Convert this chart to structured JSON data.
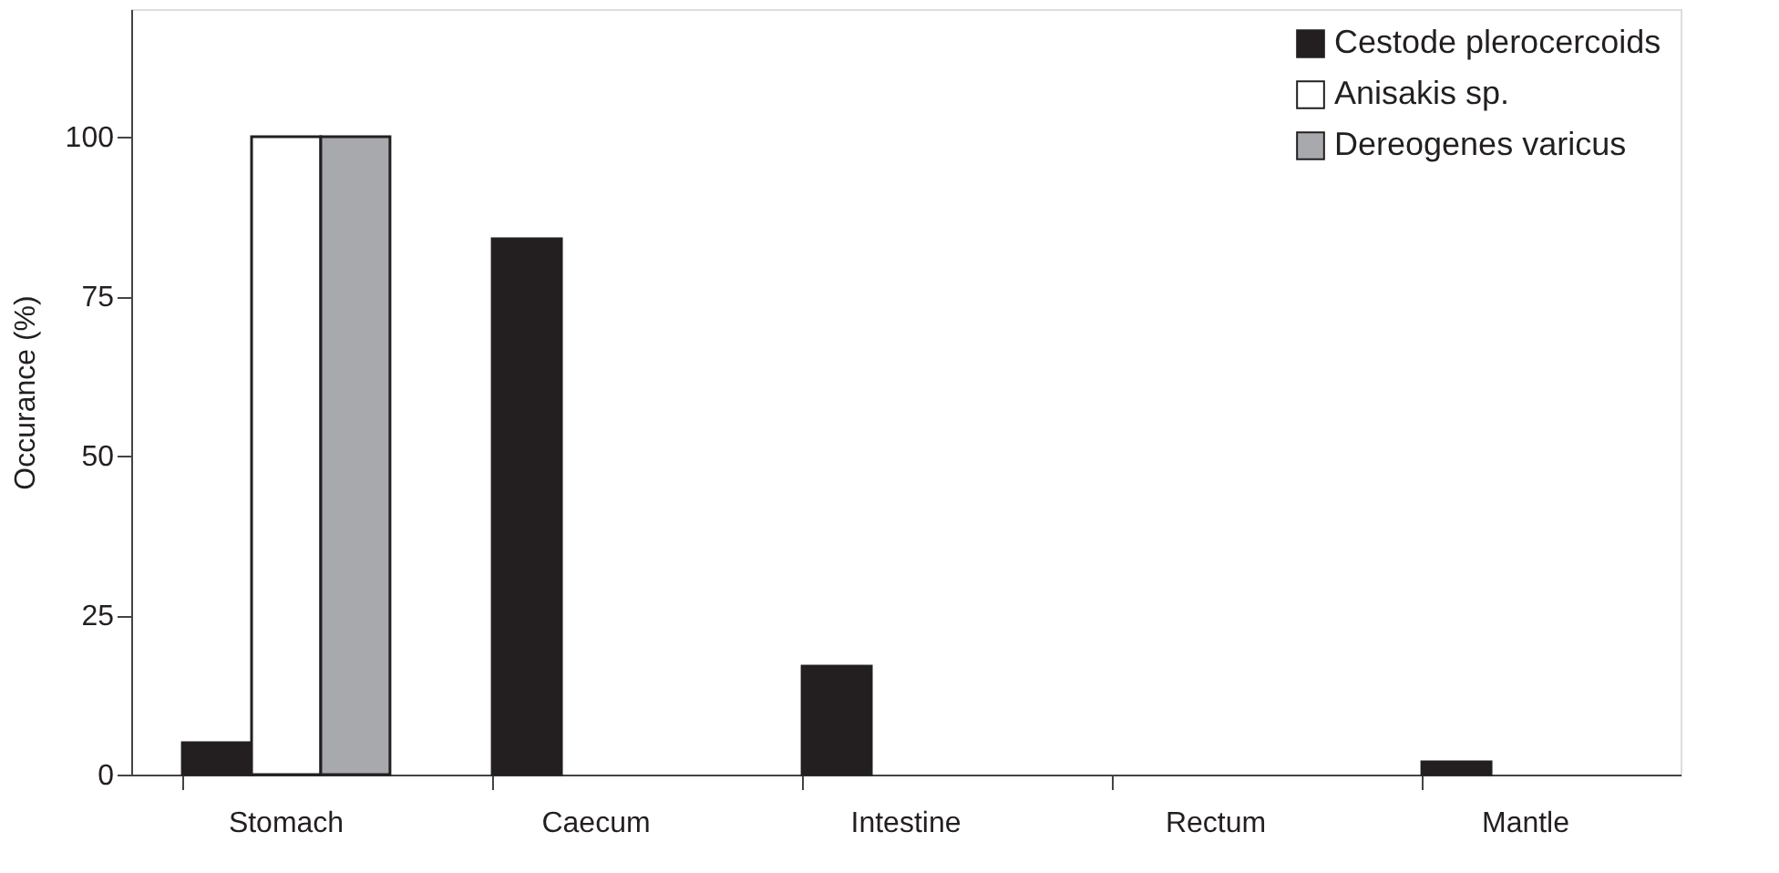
{
  "chart_data": {
    "type": "bar",
    "ylabel": "Occurance  (%)",
    "categories": [
      "Stomach",
      "Caecum",
      "Intestine",
      "Rectum",
      "Mantle"
    ],
    "series": [
      {
        "name": "Cestode plerocercoids",
        "color": "#231f20",
        "values": [
          5,
          84,
          17,
          null,
          2
        ]
      },
      {
        "name": "Anisakis sp.",
        "color": "#ffffff",
        "values": [
          100,
          null,
          null,
          null,
          null
        ]
      },
      {
        "name": "Dereogenes varicus",
        "color": "#a7a9ac",
        "values": [
          100,
          null,
          null,
          null,
          null
        ]
      }
    ],
    "ylim": [
      0,
      120
    ],
    "yticks": [
      0,
      25,
      50,
      75,
      100
    ],
    "grid": false,
    "legend": "top right"
  }
}
